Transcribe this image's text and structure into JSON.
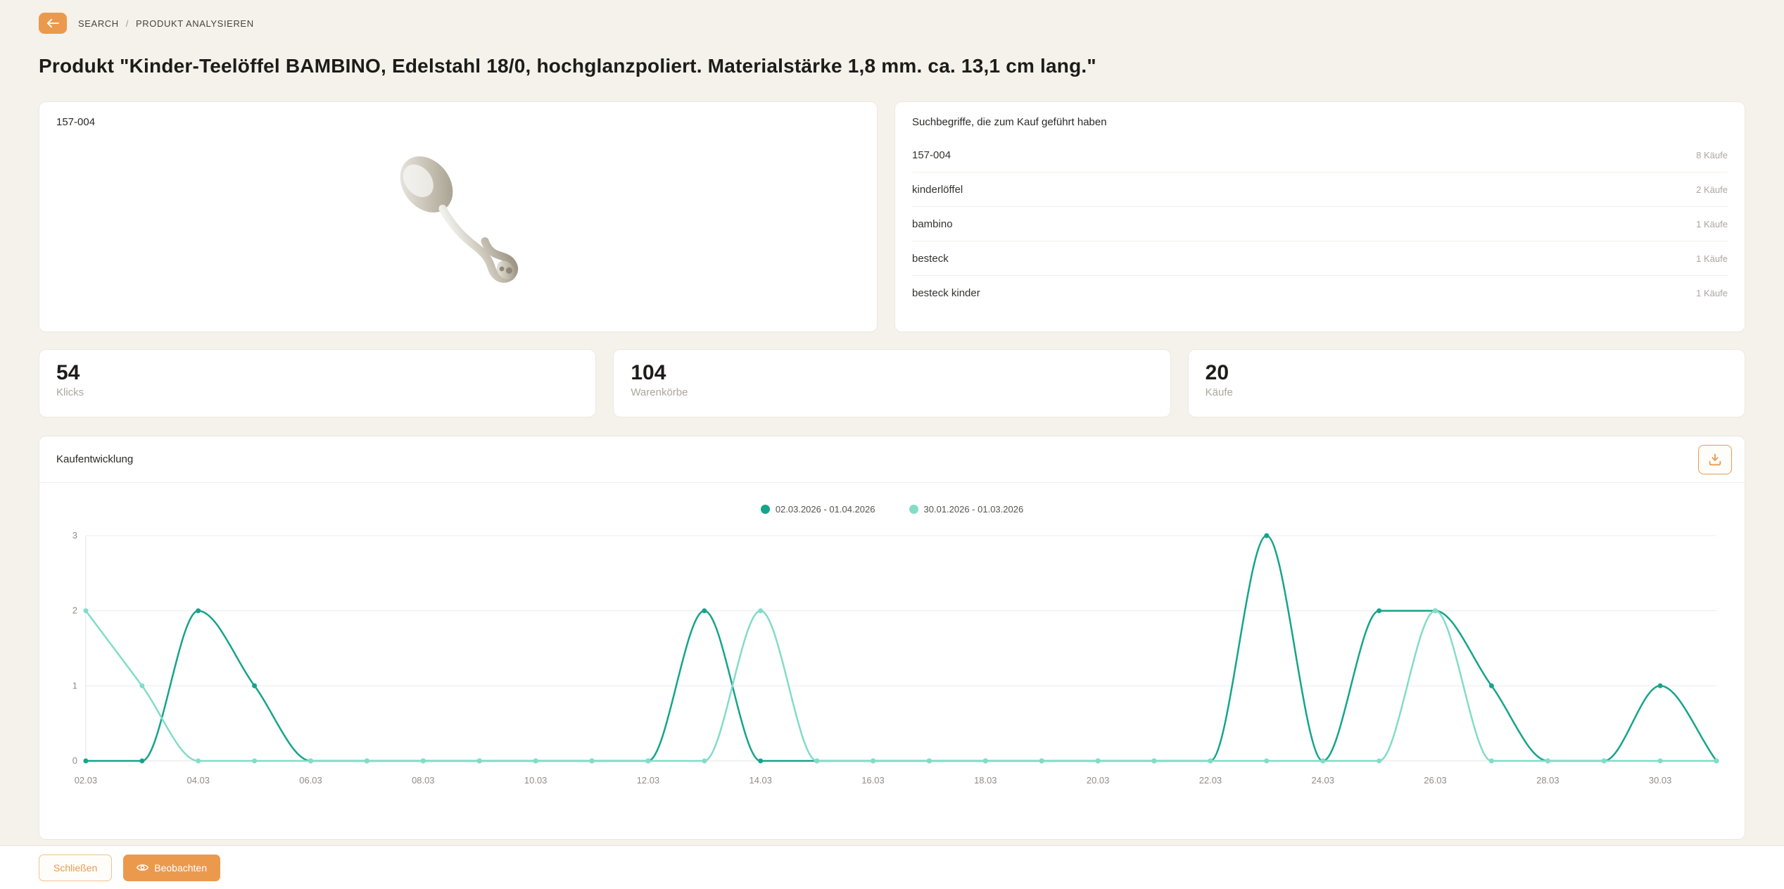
{
  "colors": {
    "accent": "#eb9a4d",
    "series1": "#15a48b",
    "series2": "#82dcc8",
    "background": "#f5f2ec",
    "grid": "#ececec"
  },
  "breadcrumb": {
    "items": [
      "SEARCH",
      "PRODUKT ANALYSIEREN"
    ],
    "separator": "/"
  },
  "page_title": "Produkt \"Kinder-Teelöffel BAMBINO, Edelstahl 18/0, hochglanzpoliert. Materialstärke 1,8 mm. ca. 13,1 cm lang.\"",
  "product_card": {
    "sku": "157-004"
  },
  "search_terms_card": {
    "title": "Suchbegriffe, die zum Kauf geführt haben",
    "rows": [
      {
        "term": "157-004",
        "count": "8 Käufe"
      },
      {
        "term": "kinderlöffel",
        "count": "2 Käufe"
      },
      {
        "term": "bambino",
        "count": "1 Käufe"
      },
      {
        "term": "besteck",
        "count": "1 Käufe"
      },
      {
        "term": "besteck kinder",
        "count": "1 Käufe"
      }
    ]
  },
  "stats": [
    {
      "value": "54",
      "label": "Klicks"
    },
    {
      "value": "104",
      "label": "Warenkörbe"
    },
    {
      "value": "20",
      "label": "Käufe"
    }
  ],
  "chart_card": {
    "title": "Kaufentwicklung"
  },
  "chart_data": {
    "type": "line",
    "title": "Kaufentwicklung",
    "x": [
      "02.03",
      "03.03",
      "04.03",
      "05.03",
      "06.03",
      "07.03",
      "08.03",
      "09.03",
      "10.03",
      "11.03",
      "12.03",
      "13.03",
      "14.03",
      "15.03",
      "16.03",
      "17.03",
      "18.03",
      "19.03",
      "20.03",
      "21.03",
      "22.03",
      "23.03",
      "24.03",
      "25.03",
      "26.03",
      "27.03",
      "28.03",
      "29.03",
      "30.03",
      "31.03"
    ],
    "series": [
      {
        "name": "02.03.2026 - 01.04.2026",
        "color": "#15a48b",
        "values": [
          0,
          0,
          2,
          1,
          0,
          0,
          0,
          0,
          0,
          0,
          0,
          2,
          0,
          0,
          0,
          0,
          0,
          0,
          0,
          0,
          0,
          3,
          0,
          2,
          2,
          1,
          0,
          0,
          1,
          0
        ]
      },
      {
        "name": "30.01.2026 - 01.03.2026",
        "color": "#82dcc8",
        "values": [
          2,
          1,
          0,
          0,
          0,
          0,
          0,
          0,
          0,
          0,
          0,
          0,
          2,
          0,
          0,
          0,
          0,
          0,
          0,
          0,
          0,
          0,
          0,
          0,
          2,
          0,
          0,
          0,
          0,
          0
        ]
      }
    ],
    "ylim": [
      0,
      3
    ],
    "yticks": [
      0,
      1,
      2,
      3
    ],
    "x_tick_step": 2,
    "grid": true,
    "legend_position": "top"
  },
  "footer": {
    "close_label": "Schließen",
    "watch_label": "Beobachten"
  }
}
